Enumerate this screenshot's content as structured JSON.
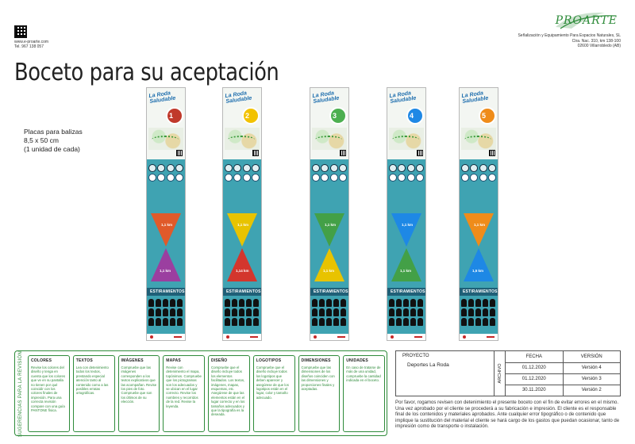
{
  "header": {
    "contact_web": "www.e-proarte.com",
    "contact_phone": "Tel. 967 138 057",
    "logo_text": "PROARTE",
    "company_line1": "Señalización y Equipamiento Para Espacios Naturales, SL",
    "company_line2": "Ctra. Nac. 310, km 138-100",
    "company_line3": "02600 Villarrobledo (AB)"
  },
  "title": "Boceto para su aceptación",
  "description": {
    "line1": "Placas para balizas",
    "line2": "8,5 x 50 cm",
    "line3": "(1 unidad de cada)"
  },
  "signs": [
    {
      "number": "1",
      "color": "#c0392b",
      "title": "La Roda Saludable",
      "arrow1_km": "1,1 km",
      "arrow2_km": "1,1 km",
      "arrow_color": "#e05a2a",
      "arrow2_color": "#9b3fa0",
      "band": "ESTIRAMIENTOS"
    },
    {
      "number": "2",
      "color": "#f2c200",
      "title": "La Roda Saludable",
      "arrow1_km": "1,1 km",
      "arrow2_km": "1,14 km",
      "arrow_color": "#e8c300",
      "arrow2_color": "#d3362d",
      "band": "ESTIRAMIENTOS"
    },
    {
      "number": "3",
      "color": "#4caf50",
      "title": "La Roda Saludable",
      "arrow1_km": "1,1 km",
      "arrow2_km": "1,1 km",
      "arrow_color": "#43a047",
      "arrow2_color": "#e8c300",
      "band": "ESTIRAMIENTOS"
    },
    {
      "number": "4",
      "color": "#1e88e5",
      "title": "La Roda Saludable",
      "arrow1_km": "1,1 km",
      "arrow2_km": "1,1 km",
      "arrow_color": "#1e88e5",
      "arrow2_color": "#43a047",
      "band": "ESTIRAMIENTOS"
    },
    {
      "number": "5",
      "color": "#ef8c1a",
      "title": "La Roda Saludable",
      "arrow1_km": "1,1 km",
      "arrow2_km": "1,5 km",
      "arrow_color": "#ef8c1a",
      "arrow2_color": "#1e88e5",
      "band": "ESTIRAMIENTOS"
    }
  ],
  "suggestions": {
    "label": "SUGERENCIAS PARA LA REVISIÓN",
    "categories": [
      {
        "title": "COLORES",
        "text": "Revise los colores del diseño y tenga en cuenta que los colores que ve en su pantalla no tienen por qué coincidir con los colores finales de impresión. Para una correcta revisión compare con una guía PANTONE física."
      },
      {
        "title": "TEXTOS",
        "text": "Lea con detenimiento todos los textos, prestando especial atención tanto al contenido como a las posibles erratas ortográficas."
      },
      {
        "title": "IMÁGENES",
        "text": "Compruebe que las imágenes corresponden a los textos explicativos que las acompañan. Revise los pies de foto. Compruebe que son los últimos de su elección."
      },
      {
        "title": "MAPAS",
        "text": "Revise con detenimiento el mapa, topónimos. Compruebe que los pictogramas son los adecuados y se ubican en el lugar correcto. Revise los nombres y recorridos de la red. Revise la leyenda."
      },
      {
        "title": "DISEÑO",
        "text": "Compruebe que el diseño incluye todos los elementos facilitados. Los textos, imágenes, mapas, esquemas, etc. Asegúrese de que las elementos están en el lugar correcto y en los tamaños adecuados y que la tipografía es la deseada."
      },
      {
        "title": "LOGOTIPOS",
        "text": "Compruebe que el diseño incluye todos los logotipos que deben aparecer y asegúrese de que los logotipos están en el lugar, color y tamaño adecuado."
      },
      {
        "title": "DIMENSIONES",
        "text": "Compruebe que las dimensiones de los diseños coinciden con las dimensiones y proporciones finales y aceptadas."
      },
      {
        "title": "UNIDADES",
        "text": "En caso de tratarse de más de una unidad, compruebe la cantidad indicada en el boceto."
      }
    ]
  },
  "project": {
    "header": "PROYECTO",
    "value": "Deportes La Roda",
    "archivo": "ARCHIVO",
    "col_fecha": "FECHA",
    "col_version": "VERSIÓN",
    "rows": [
      {
        "fecha": "01.12.2020",
        "version": "Versión 4"
      },
      {
        "fecha": "01.12.2020",
        "version": "Versión 3"
      },
      {
        "fecha": "30.11.2020",
        "version": "Versión 2"
      }
    ]
  },
  "note": "Por favor, rogamos revisen con detenimiento el presente boceto con el fin de evitar errores en el mismo. Una vez aprobado por el cliente se procederá a su fabricación e impresión. El cliente es el responsable final de los contenidos y materiales aprobados. Ante cualquier error tipográfico o de contenido que implique la sustitución del material el cliente se hará cargo de los gastos que puedan ocasionar, tanto de impresión como de transporte o instalación."
}
